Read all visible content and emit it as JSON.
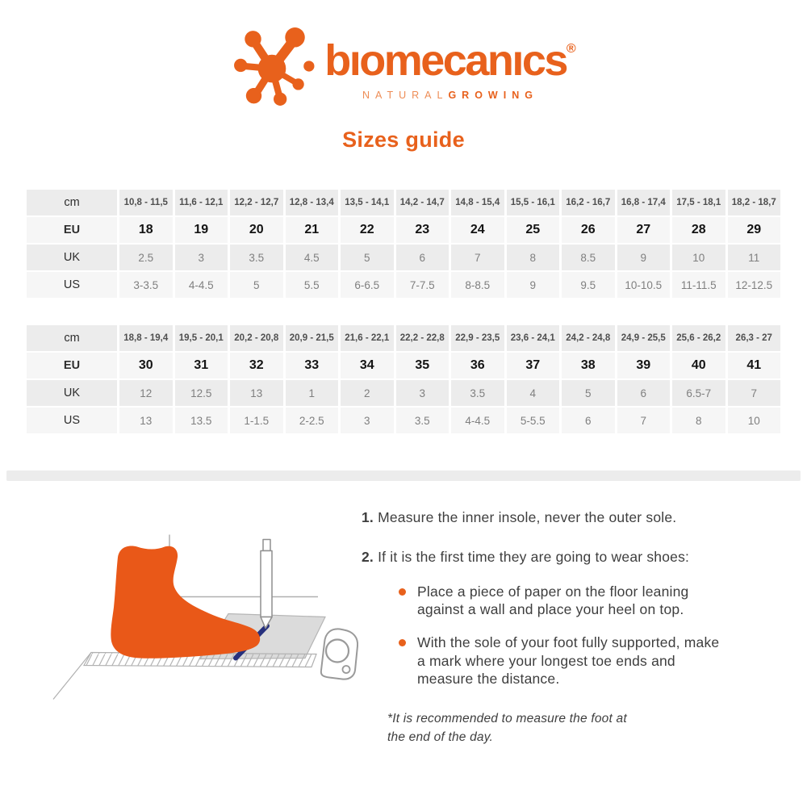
{
  "brand": {
    "wordmark": "bıomecanıcs",
    "registered": "®",
    "tagline_light": "NATURAL",
    "tagline_bold": "GROWING",
    "icon": "splat-molecule-icon"
  },
  "page_title": "Sizes guide",
  "size_tables": [
    {
      "name": "sizes-eu-18-29",
      "rows": [
        {
          "label": "cm",
          "values": [
            "10,8 - 11,5",
            "11,6 - 12,1",
            "12,2 - 12,7",
            "12,8 - 13,4",
            "13,5 - 14,1",
            "14,2 - 14,7",
            "14,8 - 15,4",
            "15,5 - 16,1",
            "16,2 - 16,7",
            "16,8 - 17,4",
            "17,5 - 18,1",
            "18,2 - 18,7"
          ]
        },
        {
          "label": "EU",
          "values": [
            "18",
            "19",
            "20",
            "21",
            "22",
            "23",
            "24",
            "25",
            "26",
            "27",
            "28",
            "29"
          ]
        },
        {
          "label": "UK",
          "values": [
            "2.5",
            "3",
            "3.5",
            "4.5",
            "5",
            "6",
            "7",
            "8",
            "8.5",
            "9",
            "10",
            "11"
          ]
        },
        {
          "label": "US",
          "values": [
            "3-3.5",
            "4-4.5",
            "5",
            "5.5",
            "6-6.5",
            "7-7.5",
            "8-8.5",
            "9",
            "9.5",
            "10-10.5",
            "11-11.5",
            "12-12.5"
          ]
        }
      ]
    },
    {
      "name": "sizes-eu-30-41",
      "rows": [
        {
          "label": "cm",
          "values": [
            "18,8 - 19,4",
            "19,5 - 20,1",
            "20,2 - 20,8",
            "20,9 - 21,5",
            "21,6 - 22,1",
            "22,2 - 22,8",
            "22,9 - 23,5",
            "23,6 - 24,1",
            "24,2 - 24,8",
            "24,9 - 25,5",
            "25,6 - 26,2",
            "26,3 - 27"
          ]
        },
        {
          "label": "EU",
          "values": [
            "30",
            "31",
            "32",
            "33",
            "34",
            "35",
            "36",
            "37",
            "38",
            "39",
            "40",
            "41"
          ]
        },
        {
          "label": "UK",
          "values": [
            "12",
            "12.5",
            "13",
            "1",
            "2",
            "3",
            "3.5",
            "4",
            "5",
            "6",
            "6.5-7",
            "7"
          ]
        },
        {
          "label": "US",
          "values": [
            "13",
            "13.5",
            "1-1.5",
            "2-2.5",
            "3",
            "3.5",
            "4-4.5",
            "5-5.5",
            "6",
            "7",
            "8",
            "10"
          ]
        }
      ]
    }
  ],
  "instructions": {
    "items": [
      {
        "number": "1.",
        "text": "Measure the inner insole, never the outer sole."
      },
      {
        "number": "2.",
        "text": "If it is the first time they are going to wear shoes:"
      }
    ],
    "bullets": [
      "Place a piece of paper on the floor leaning against a wall and place your heel on top.",
      "With the sole of your foot fully supported, make a mark where your longest toe ends and measure the distance."
    ],
    "footnote": "*It is recommended to measure the foot at the end of the day."
  },
  "illustration": {
    "description": "foot-on-paper-measuring-diagram"
  },
  "colors": {
    "accent": "#e8611c",
    "tagline_light": "#ee8c55",
    "foot": "#e95818",
    "row_gray": "#ececec",
    "row_light": "#f6f6f6",
    "mark_blue": "#26307d",
    "body_text": "#3e3e3e",
    "line_gray": "#aeaeae"
  }
}
